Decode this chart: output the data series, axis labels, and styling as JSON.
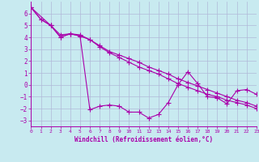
{
  "bg_color": "#c8eaf0",
  "grid_color": "#b0b8d8",
  "line_color": "#aa00aa",
  "line1": {
    "x": [
      0,
      1,
      2,
      3,
      4,
      5,
      6,
      7,
      8,
      9,
      10,
      11,
      12,
      13,
      14,
      15,
      16,
      17,
      18,
      19,
      20,
      21,
      22,
      23
    ],
    "y": [
      6.5,
      5.5,
      5.0,
      4.0,
      4.3,
      4.2,
      3.8,
      3.3,
      2.8,
      2.5,
      2.2,
      1.9,
      1.5,
      1.2,
      0.9,
      0.5,
      0.2,
      -0.1,
      -0.4,
      -0.7,
      -1.0,
      -1.3,
      -1.5,
      -1.8
    ]
  },
  "line2": {
    "x": [
      0,
      1,
      2,
      3,
      4,
      5,
      6,
      7,
      8,
      9,
      10,
      11,
      12,
      13,
      14,
      15,
      16,
      17,
      18,
      19,
      20,
      21,
      22,
      23
    ],
    "y": [
      6.5,
      5.5,
      5.0,
      4.2,
      4.3,
      4.1,
      -2.1,
      -1.8,
      -1.7,
      -1.8,
      -2.3,
      -2.3,
      -2.8,
      -2.5,
      -1.5,
      0.0,
      1.1,
      0.1,
      -1.0,
      -1.1,
      -1.6,
      -0.5,
      -0.4,
      -0.8
    ]
  },
  "line3": {
    "x": [
      0,
      2,
      3,
      4,
      5,
      6,
      7,
      8,
      9,
      10,
      11,
      12,
      13,
      14,
      15,
      16,
      17,
      18,
      19,
      20,
      21,
      22,
      23
    ],
    "y": [
      6.5,
      5.0,
      4.0,
      4.3,
      4.1,
      3.8,
      3.2,
      2.7,
      2.3,
      1.9,
      1.5,
      1.2,
      0.9,
      0.5,
      0.1,
      -0.2,
      -0.5,
      -0.8,
      -1.0,
      -1.3,
      -1.5,
      -1.7,
      -2.0
    ]
  },
  "xlim": [
    0,
    23
  ],
  "ylim": [
    -3.5,
    7
  ],
  "yticks": [
    -3,
    -2,
    -1,
    0,
    1,
    2,
    3,
    4,
    5,
    6
  ],
  "xticks": [
    0,
    1,
    2,
    3,
    4,
    5,
    6,
    7,
    8,
    9,
    10,
    11,
    12,
    13,
    14,
    15,
    16,
    17,
    18,
    19,
    20,
    21,
    22,
    23
  ],
  "xlabel": "Windchill (Refroidissement éolien,°C)",
  "marker": "+",
  "markersize": 4,
  "linewidth": 0.8,
  "font_color": "#aa00aa"
}
